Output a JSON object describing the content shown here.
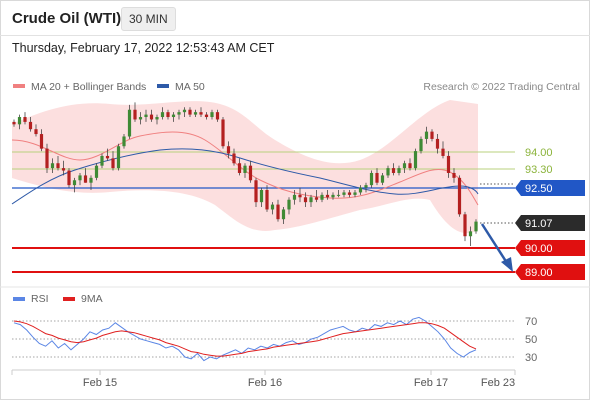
{
  "header": {
    "title": "Crude Oil (WTI)",
    "timeframe": "30 MIN",
    "datetime": "Thursday, February 17, 2022 12:53:43 AM CET"
  },
  "legend": {
    "items": [
      {
        "label": "MA 20 + Bollinger Bands",
        "color": "#f08080"
      },
      {
        "label": "MA 50",
        "color": "#2e5aa8"
      }
    ],
    "copyright": "Research © 2022 Trading Central"
  },
  "rsi_legend": {
    "items": [
      {
        "label": "RSI",
        "color": "#5b86e5"
      },
      {
        "label": "9MA",
        "color": "#e02020"
      }
    ]
  },
  "chart_data": [
    {
      "type": "candlestick",
      "title": "Crude Oil (WTI)",
      "x_ticks": [
        "Feb 15",
        "Feb 16",
        "Feb 17",
        "Feb 23"
      ],
      "ylim": [
        88.6,
        96.0
      ],
      "candles_approx": [
        [
          95.1,
          95.2,
          94.9,
          95.0
        ],
        [
          95.0,
          95.4,
          94.8,
          95.3
        ],
        [
          95.3,
          95.5,
          95.0,
          95.1
        ],
        [
          95.1,
          95.3,
          94.7,
          94.8
        ],
        [
          94.8,
          95.0,
          94.5,
          94.6
        ],
        [
          94.6,
          94.8,
          93.9,
          94.0
        ],
        [
          94.0,
          94.2,
          93.0,
          93.2
        ],
        [
          93.2,
          93.6,
          93.0,
          93.4
        ],
        [
          93.4,
          93.7,
          93.1,
          93.2
        ],
        [
          93.2,
          93.5,
          92.9,
          93.1
        ],
        [
          93.1,
          93.2,
          92.4,
          92.5
        ],
        [
          92.5,
          92.8,
          92.2,
          92.7
        ],
        [
          92.7,
          93.0,
          92.5,
          92.9
        ],
        [
          92.9,
          93.2,
          92.6,
          92.6
        ],
        [
          92.6,
          92.9,
          92.3,
          92.8
        ],
        [
          92.8,
          93.4,
          92.7,
          93.3
        ],
        [
          93.3,
          93.8,
          93.2,
          93.7
        ],
        [
          93.7,
          94.0,
          93.5,
          93.6
        ],
        [
          93.6,
          93.9,
          93.1,
          93.2
        ],
        [
          93.2,
          94.2,
          93.1,
          94.1
        ],
        [
          94.1,
          94.6,
          94.0,
          94.5
        ],
        [
          94.5,
          95.8,
          94.4,
          95.6
        ],
        [
          95.6,
          95.9,
          95.1,
          95.2
        ],
        [
          95.2,
          95.5,
          95.0,
          95.3
        ],
        [
          95.3,
          95.6,
          95.1,
          95.4
        ],
        [
          95.4,
          95.6,
          95.1,
          95.2
        ],
        [
          95.2,
          95.4,
          95.0,
          95.3
        ],
        [
          95.3,
          95.7,
          95.2,
          95.5
        ],
        [
          95.5,
          95.6,
          95.2,
          95.3
        ],
        [
          95.3,
          95.5,
          95.1,
          95.4
        ],
        [
          95.4,
          95.6,
          95.2,
          95.5
        ],
        [
          95.5,
          95.7,
          95.3,
          95.6
        ],
        [
          95.6,
          95.7,
          95.3,
          95.4
        ],
        [
          95.4,
          95.6,
          95.3,
          95.5
        ],
        [
          95.5,
          95.7,
          95.3,
          95.4
        ],
        [
          95.4,
          95.5,
          95.2,
          95.3
        ],
        [
          95.3,
          95.6,
          95.2,
          95.5
        ],
        [
          95.5,
          95.6,
          95.1,
          95.2
        ],
        [
          95.2,
          95.3,
          94.0,
          94.1
        ],
        [
          94.1,
          94.3,
          93.6,
          93.8
        ],
        [
          93.8,
          94.0,
          93.3,
          93.4
        ],
        [
          93.4,
          93.6,
          92.9,
          93.0
        ],
        [
          93.0,
          93.4,
          92.8,
          93.3
        ],
        [
          93.3,
          93.5,
          92.6,
          92.7
        ],
        [
          92.7,
          92.8,
          91.6,
          91.8
        ],
        [
          91.8,
          92.4,
          91.6,
          92.3
        ],
        [
          92.3,
          92.5,
          91.4,
          91.5
        ],
        [
          91.5,
          91.8,
          91.3,
          91.7
        ],
        [
          91.7,
          91.9,
          91.0,
          91.1
        ],
        [
          91.1,
          91.6,
          90.9,
          91.5
        ],
        [
          91.5,
          92.0,
          91.3,
          91.9
        ],
        [
          91.9,
          92.3,
          91.7,
          92.1
        ],
        [
          92.1,
          92.4,
          91.8,
          92.0
        ],
        [
          92.0,
          92.2,
          91.6,
          91.8
        ],
        [
          91.8,
          92.1,
          91.6,
          92.0
        ],
        [
          92.0,
          92.3,
          91.8,
          91.9
        ],
        [
          91.9,
          92.2,
          91.8,
          92.1
        ],
        [
          92.1,
          92.3,
          91.9,
          92.0
        ],
        [
          92.0,
          92.2,
          91.9,
          92.1
        ],
        [
          92.1,
          92.3,
          92.0,
          92.1
        ],
        [
          92.1,
          92.3,
          92.0,
          92.2
        ],
        [
          92.2,
          92.3,
          92.0,
          92.1
        ],
        [
          92.1,
          92.3,
          92.0,
          92.2
        ],
        [
          92.2,
          92.5,
          92.1,
          92.4
        ],
        [
          92.4,
          92.6,
          92.2,
          92.5
        ],
        [
          92.5,
          93.1,
          92.4,
          93.0
        ],
        [
          93.0,
          93.2,
          92.5,
          92.6
        ],
        [
          92.6,
          93.0,
          92.5,
          92.9
        ],
        [
          92.9,
          93.3,
          92.8,
          93.2
        ],
        [
          93.2,
          93.4,
          92.9,
          93.0
        ],
        [
          93.0,
          93.3,
          92.9,
          93.2
        ],
        [
          93.2,
          93.5,
          93.0,
          93.4
        ],
        [
          93.4,
          93.6,
          93.1,
          93.2
        ],
        [
          93.2,
          94.0,
          93.1,
          93.9
        ],
        [
          93.9,
          94.5,
          93.8,
          94.4
        ],
        [
          94.4,
          94.9,
          94.2,
          94.7
        ],
        [
          94.7,
          94.8,
          94.3,
          94.4
        ],
        [
          94.4,
          94.6,
          93.8,
          94.0
        ],
        [
          94.0,
          94.3,
          93.6,
          93.7
        ],
        [
          93.7,
          93.9,
          92.8,
          93.0
        ],
        [
          93.0,
          93.2,
          92.6,
          92.8
        ],
        [
          92.8,
          92.9,
          91.2,
          91.3
        ],
        [
          91.3,
          91.4,
          90.2,
          90.4
        ],
        [
          90.4,
          90.8,
          90.0,
          90.6
        ],
        [
          90.6,
          91.1,
          90.5,
          91.0
        ]
      ],
      "series": [
        {
          "name": "MA 20 + Bollinger Bands",
          "color": "#f08080"
        },
        {
          "name": "MA 50",
          "color": "#2e5aa8"
        }
      ],
      "levels": [
        {
          "value": "94.00",
          "type": "resistance",
          "color": "#8bb33a"
        },
        {
          "value": "93.30",
          "type": "resistance",
          "color": "#8bb33a"
        },
        {
          "value": "92.50",
          "type": "pivot",
          "color": "#2157c6"
        },
        {
          "value": "91.07",
          "type": "last",
          "color": "#2b2b2b"
        },
        {
          "value": "90.00",
          "type": "support",
          "color": "#e01010"
        },
        {
          "value": "89.00",
          "type": "support",
          "color": "#e01010"
        }
      ],
      "forecast_arrow": "down"
    },
    {
      "type": "line",
      "title": "RSI",
      "y_ticks": [
        "70",
        "50",
        "30"
      ],
      "ylim": [
        20,
        80
      ],
      "series": [
        {
          "name": "RSI",
          "color": "#5b86e5",
          "values": [
            68,
            66,
            60,
            52,
            45,
            42,
            48,
            40,
            45,
            38,
            44,
            50,
            58,
            55,
            60,
            62,
            68,
            63,
            58,
            54,
            50,
            48,
            46,
            44,
            40,
            42,
            38,
            30,
            28,
            34,
            26,
            30,
            28,
            32,
            35,
            38,
            34,
            40,
            38,
            42,
            40,
            44,
            42,
            46,
            48,
            44,
            46,
            50,
            52,
            56,
            60,
            62,
            64,
            60,
            58,
            62,
            60,
            66,
            64,
            68,
            66,
            70,
            66,
            72,
            74,
            70,
            64,
            58,
            50,
            40,
            34,
            30,
            35,
            38
          ]
        },
        {
          "name": "9MA",
          "color": "#e02020",
          "values": [
            70,
            69,
            67,
            64,
            60,
            56,
            54,
            51,
            49,
            47,
            46,
            47,
            49,
            51,
            54,
            56,
            58,
            59,
            58,
            57,
            55,
            53,
            51,
            49,
            46,
            44,
            42,
            39,
            36,
            35,
            33,
            32,
            31,
            31,
            32,
            33,
            34,
            36,
            37,
            38,
            39,
            41,
            42,
            43,
            44,
            45,
            46,
            47,
            48,
            50,
            52,
            54,
            56,
            57,
            58,
            59,
            60,
            61,
            62,
            63,
            64,
            65,
            66,
            67,
            68,
            68,
            67,
            65,
            62,
            57,
            52,
            47,
            42,
            39
          ]
        }
      ]
    }
  ]
}
